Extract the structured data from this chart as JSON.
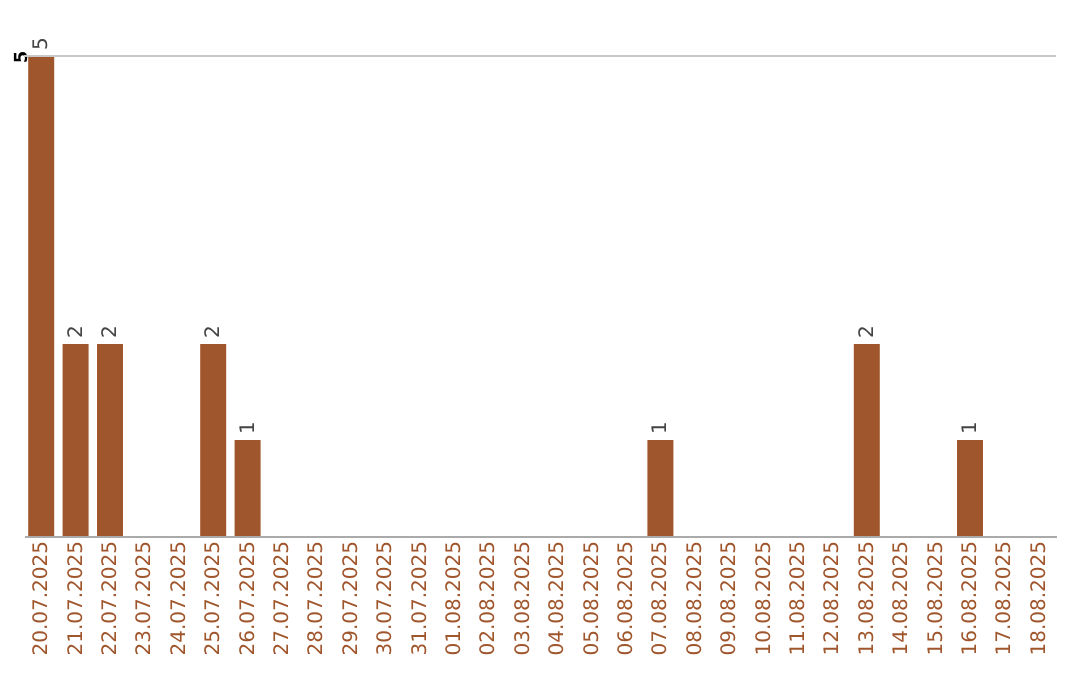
{
  "chart_data": {
    "type": "bar",
    "categories": [
      "20.07.2025",
      "21.07.2025",
      "22.07.2025",
      "23.07.2025",
      "24.07.2025",
      "25.07.2025",
      "26.07.2025",
      "27.07.2025",
      "28.07.2025",
      "29.07.2025",
      "30.07.2025",
      "31.07.2025",
      "01.08.2025",
      "02.08.2025",
      "03.08.2025",
      "04.08.2025",
      "05.08.2025",
      "06.08.2025",
      "07.08.2025",
      "08.08.2025",
      "09.08.2025",
      "10.08.2025",
      "11.08.2025",
      "12.08.2025",
      "13.08.2025",
      "14.08.2025",
      "15.08.2025",
      "16.08.2025",
      "17.08.2025",
      "18.08.2025"
    ],
    "values": [
      5,
      2,
      2,
      null,
      null,
      2,
      1,
      null,
      null,
      null,
      null,
      null,
      null,
      null,
      null,
      null,
      null,
      null,
      1,
      null,
      null,
      null,
      null,
      null,
      2,
      null,
      null,
      1,
      null,
      null
    ],
    "color": "#a0562c",
    "ylim": [
      0,
      5
    ],
    "yticks": [
      5
    ],
    "ref_lines": [
      {
        "axis": "y",
        "value": 5,
        "color": "#c8c8c8"
      }
    ],
    "data_labels": true
  }
}
